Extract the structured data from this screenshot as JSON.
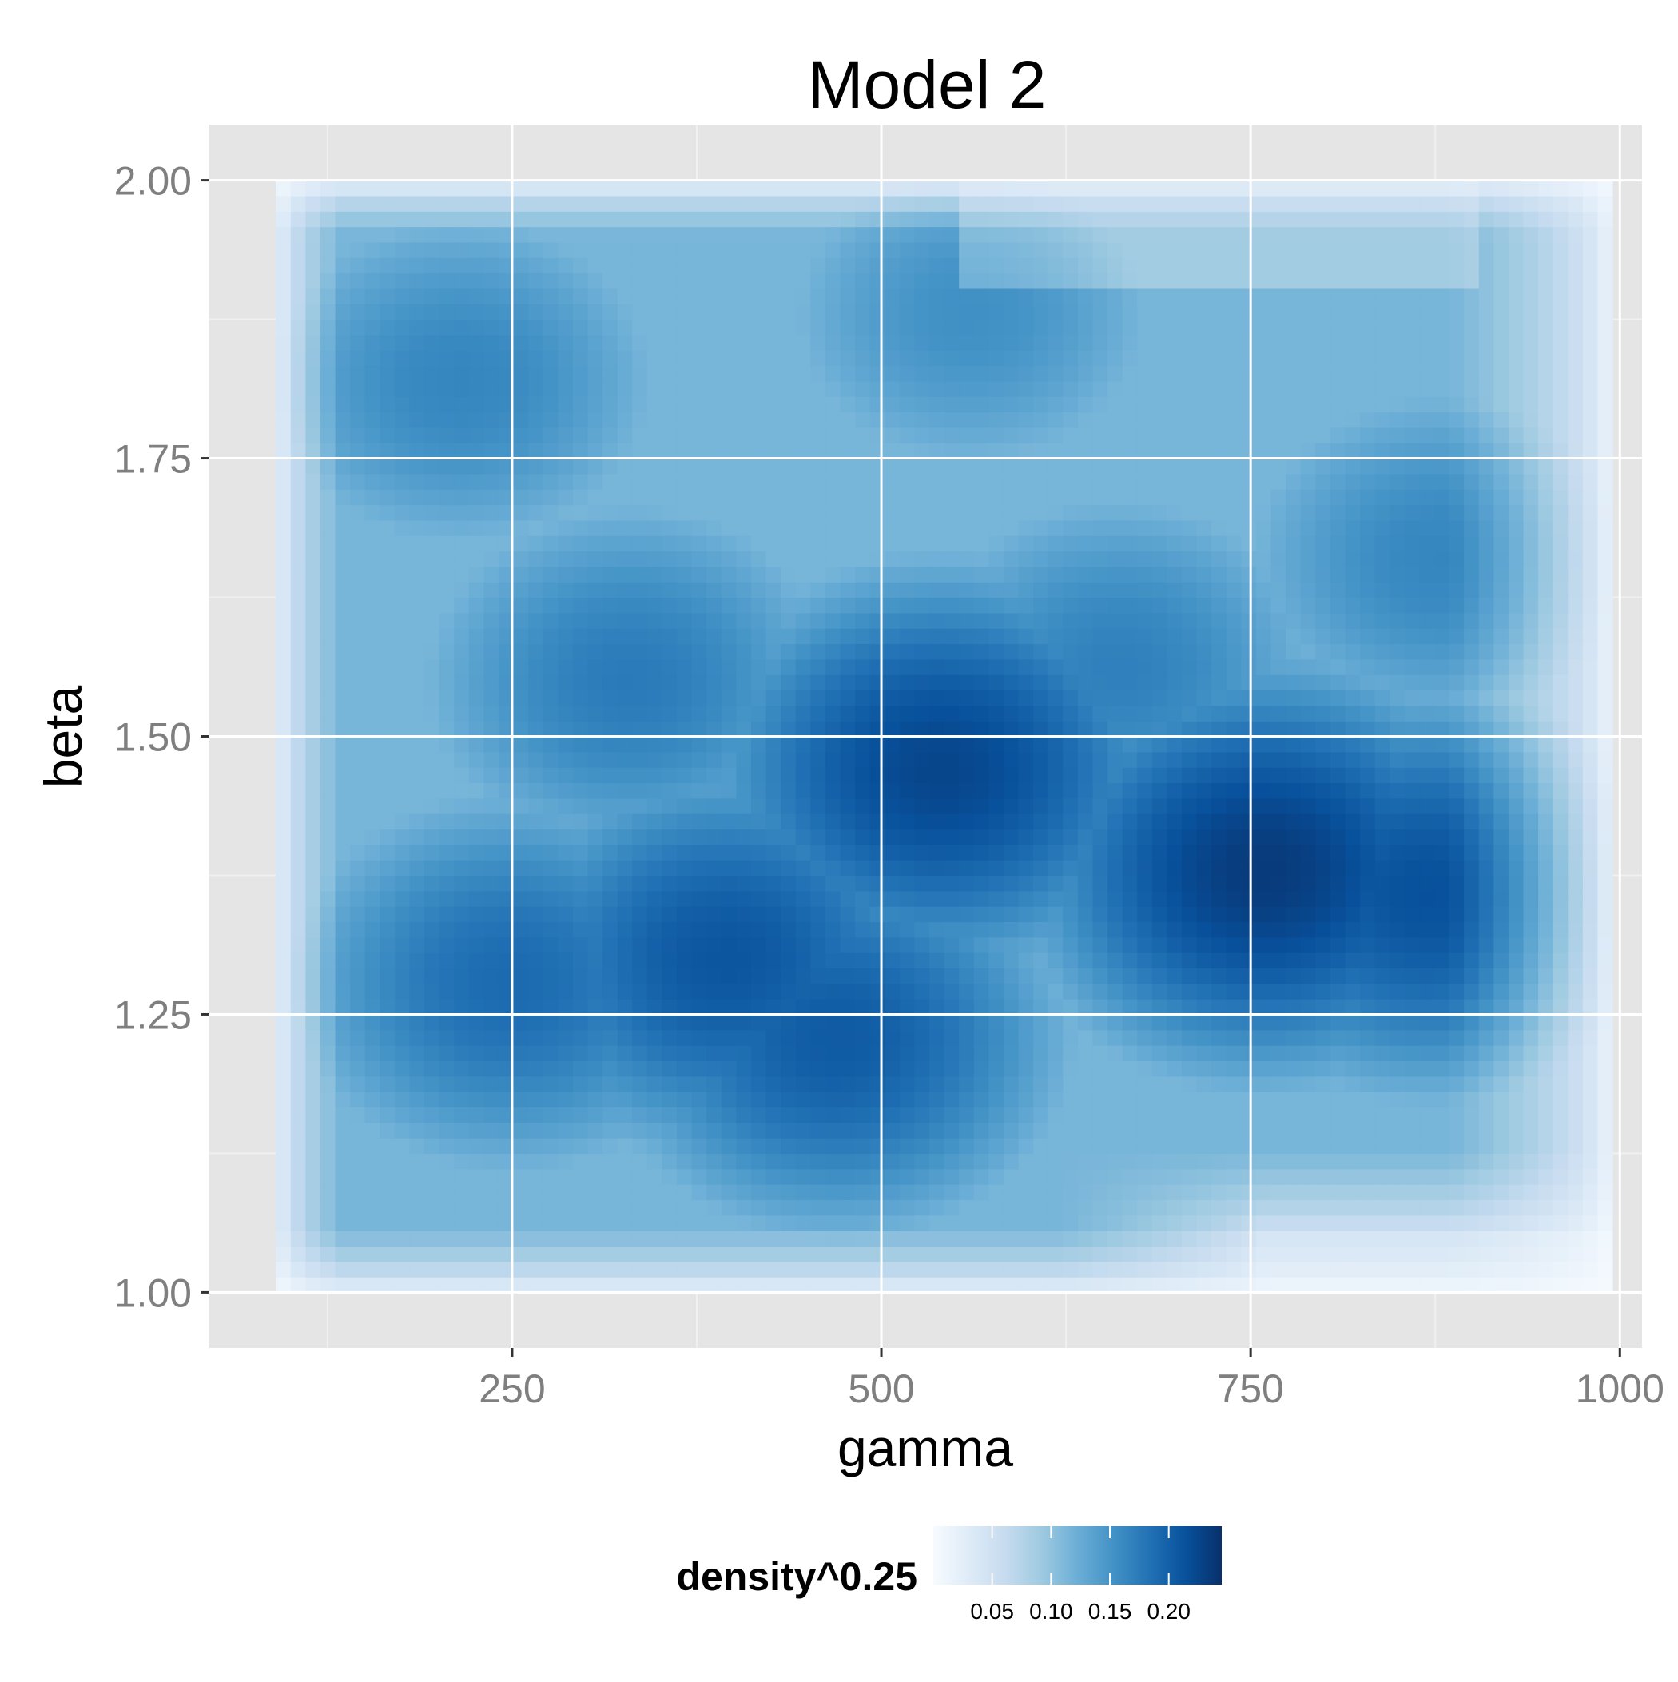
{
  "chart_data": {
    "type": "heatmap",
    "title": "Model 2",
    "xlabel": "gamma",
    "ylabel": "beta",
    "xlim": [
      45,
      1015
    ],
    "ylim": [
      0.95,
      2.05
    ],
    "x_ticks": [
      250,
      500,
      750,
      1000
    ],
    "x_tick_labels": [
      "250",
      "500",
      "750",
      "1000"
    ],
    "y_ticks": [
      1.0,
      1.25,
      1.5,
      1.75,
      2.0
    ],
    "y_tick_labels": [
      "1.00",
      "1.25",
      "1.50",
      "1.75",
      "2.00"
    ],
    "data_x_range": [
      90,
      995
    ],
    "data_y_range": [
      1.0,
      2.0
    ],
    "grid": true,
    "legend": {
      "title": "density^0.25",
      "position": "bottom",
      "min": 0.0,
      "max": 0.245,
      "breaks": [
        0.05,
        0.1,
        0.15,
        0.2
      ],
      "break_labels": [
        "0.05",
        "0.10",
        "0.15",
        "0.20"
      ]
    },
    "colorscale": {
      "low": "#f7fbff",
      "stops": [
        "#f7fbff",
        "#deebf7",
        "#c6dbef",
        "#9ecae1",
        "#6baed6",
        "#4292c6",
        "#2171b5",
        "#08519c",
        "#08306b"
      ]
    },
    "density_peaks": [
      {
        "gamma": 540,
        "beta": 1.47,
        "value": 0.225
      },
      {
        "gamma": 760,
        "beta": 1.38,
        "value": 0.235
      },
      {
        "gamma": 870,
        "beta": 1.36,
        "value": 0.215
      },
      {
        "gamma": 395,
        "beta": 1.3,
        "value": 0.21
      },
      {
        "gamma": 470,
        "beta": 1.23,
        "value": 0.205
      },
      {
        "gamma": 250,
        "beta": 1.28,
        "value": 0.19
      },
      {
        "gamma": 330,
        "beta": 1.55,
        "value": 0.175
      },
      {
        "gamma": 660,
        "beta": 1.56,
        "value": 0.17
      },
      {
        "gamma": 215,
        "beta": 1.82,
        "value": 0.165
      },
      {
        "gamma": 880,
        "beta": 1.66,
        "value": 0.165
      },
      {
        "gamma": 560,
        "beta": 1.88,
        "value": 0.155
      }
    ]
  },
  "colors": {
    "panel_background": "#e5e5e5",
    "grid_major": "#ffffff",
    "grid_minor": "#f0f0f0",
    "tick_label": "#7f7f7f",
    "title": "#000000"
  }
}
